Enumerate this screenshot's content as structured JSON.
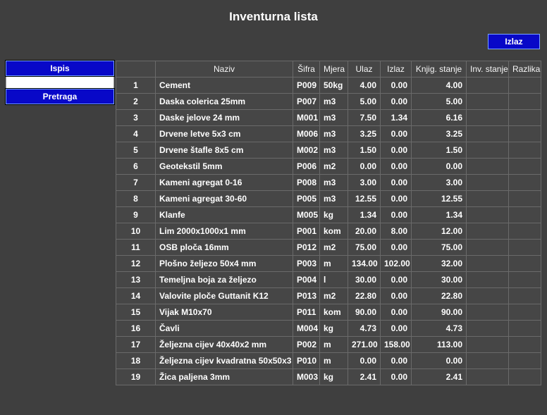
{
  "title": "Inventurna lista",
  "buttons": {
    "exit": "Izlaz",
    "print": "Ispis",
    "search": "Pretraga"
  },
  "search_value": "",
  "columns": {
    "idx": "",
    "name": "Naziv",
    "code": "Šifra",
    "unit": "Mjera",
    "in": "Ulaz",
    "out": "Izlaz",
    "book": "Knjig. stanje",
    "inv": "Inv. stanje",
    "diff": "Razlika"
  },
  "rows": [
    {
      "n": "1",
      "name": "Cement",
      "code": "P009",
      "unit": "50kg",
      "in": "4.00",
      "out": "0.00",
      "book": "4.00"
    },
    {
      "n": "2",
      "name": "Daska colerica 25mm",
      "code": "P007",
      "unit": "m3",
      "in": "5.00",
      "out": "0.00",
      "book": "5.00"
    },
    {
      "n": "3",
      "name": "Daske jelove 24 mm",
      "code": "M001",
      "unit": "m3",
      "in": "7.50",
      "out": "1.34",
      "book": "6.16"
    },
    {
      "n": "4",
      "name": "Drvene letve 5x3 cm",
      "code": "M006",
      "unit": "m3",
      "in": "3.25",
      "out": "0.00",
      "book": "3.25"
    },
    {
      "n": "5",
      "name": "Drvene štafle 8x5 cm",
      "code": "M002",
      "unit": "m3",
      "in": "1.50",
      "out": "0.00",
      "book": "1.50"
    },
    {
      "n": "6",
      "name": "Geotekstil 5mm",
      "code": "P006",
      "unit": "m2",
      "in": "0.00",
      "out": "0.00",
      "book": "0.00"
    },
    {
      "n": "7",
      "name": "Kameni agregat 0-16",
      "code": "P008",
      "unit": "m3",
      "in": "3.00",
      "out": "0.00",
      "book": "3.00"
    },
    {
      "n": "8",
      "name": "Kameni agregat 30-60",
      "code": "P005",
      "unit": "m3",
      "in": "12.55",
      "out": "0.00",
      "book": "12.55"
    },
    {
      "n": "9",
      "name": "Klanfe",
      "code": "M005",
      "unit": "kg",
      "in": "1.34",
      "out": "0.00",
      "book": "1.34"
    },
    {
      "n": "10",
      "name": "Lim 2000x1000x1 mm",
      "code": "P001",
      "unit": "kom",
      "in": "20.00",
      "out": "8.00",
      "book": "12.00"
    },
    {
      "n": "11",
      "name": "OSB ploča 16mm",
      "code": "P012",
      "unit": "m2",
      "in": "75.00",
      "out": "0.00",
      "book": "75.00"
    },
    {
      "n": "12",
      "name": "Plošno željezo 50x4 mm",
      "code": "P003",
      "unit": "m",
      "in": "134.00",
      "out": "102.00",
      "book": "32.00"
    },
    {
      "n": "13",
      "name": "Temeljna boja za željezo",
      "code": "P004",
      "unit": "l",
      "in": "30.00",
      "out": "0.00",
      "book": "30.00"
    },
    {
      "n": "14",
      "name": "Valovite ploče Guttanit K12",
      "code": "P013",
      "unit": "m2",
      "in": "22.80",
      "out": "0.00",
      "book": "22.80"
    },
    {
      "n": "15",
      "name": "Vijak M10x70",
      "code": "P011",
      "unit": "kom",
      "in": "90.00",
      "out": "0.00",
      "book": "90.00"
    },
    {
      "n": "16",
      "name": "Čavli",
      "code": "M004",
      "unit": "kg",
      "in": "4.73",
      "out": "0.00",
      "book": "4.73"
    },
    {
      "n": "17",
      "name": "Željezna cijev 40x40x2 mm",
      "code": "P002",
      "unit": "m",
      "in": "271.00",
      "out": "158.00",
      "book": "113.00"
    },
    {
      "n": "18",
      "name": "Željezna cijev kvadratna 50x50x3",
      "code": "P010",
      "unit": "m",
      "in": "0.00",
      "out": "0.00",
      "book": "0.00"
    },
    {
      "n": "19",
      "name": "Žica paljena 3mm",
      "code": "M003",
      "unit": "kg",
      "in": "2.41",
      "out": "0.00",
      "book": "2.41"
    }
  ]
}
